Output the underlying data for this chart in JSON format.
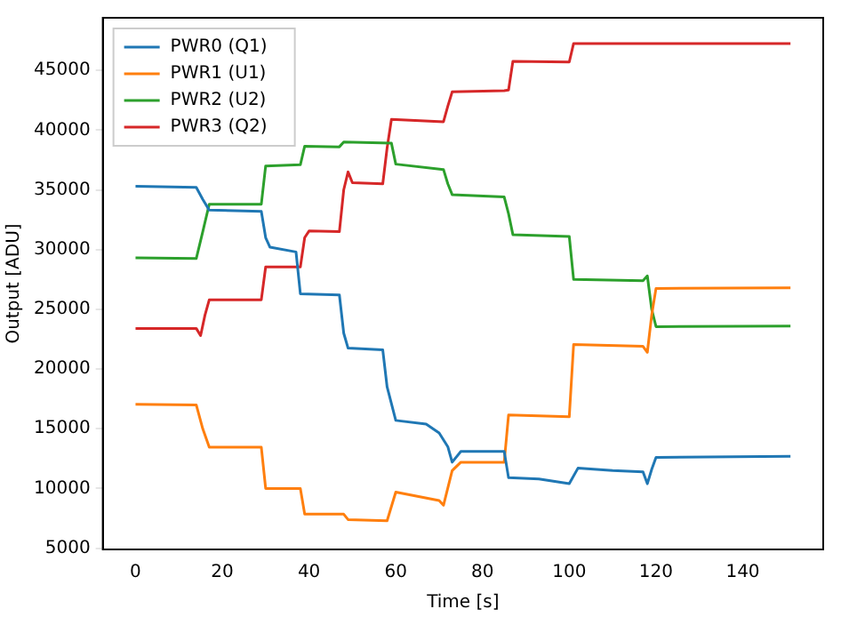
{
  "chart_data": {
    "type": "line",
    "xlabel": "Time [s]",
    "ylabel": "Output [ADU]",
    "legend": "top left",
    "grid": false,
    "marker": "none",
    "line_style": "solid",
    "xlim": [
      -7.55,
      158.55
    ],
    "xticks": [
      0,
      20,
      40,
      60,
      80,
      100,
      120,
      140
    ],
    "ylim": [
      4900,
      49400
    ],
    "yticks": [
      5000,
      10000,
      15000,
      20000,
      25000,
      30000,
      35000,
      40000,
      45000
    ],
    "series": [
      {
        "name": "PWR0 (Q1)",
        "color": "#1f77b4",
        "x": [
          0,
          14,
          15.5,
          17,
          29,
          30,
          31,
          37,
          38,
          47,
          48,
          49,
          57,
          58,
          60,
          67,
          70,
          72,
          73,
          75,
          85,
          86,
          93,
          100,
          102,
          110,
          117,
          118,
          119,
          120,
          151
        ],
        "values": [
          35300,
          35200,
          34200,
          33300,
          33200,
          31000,
          30200,
          29800,
          26300,
          26200,
          23000,
          21750,
          21600,
          18500,
          15700,
          15400,
          14650,
          13500,
          12200,
          13100,
          13100,
          10900,
          10800,
          10400,
          11700,
          11500,
          11400,
          10400,
          11600,
          12600,
          12700
        ]
      },
      {
        "name": "PWR1 (U1)",
        "color": "#ff7f0e",
        "x": [
          0,
          14,
          15.5,
          17,
          29,
          30,
          38,
          39,
          48,
          49,
          58,
          60,
          70,
          71,
          73,
          75,
          85,
          86,
          100,
          101,
          117,
          118,
          119,
          120,
          151
        ],
        "values": [
          17050,
          17000,
          15000,
          13450,
          13450,
          10000,
          10000,
          7850,
          7850,
          7400,
          7300,
          9700,
          9000,
          8600,
          11500,
          12200,
          12200,
          16150,
          16000,
          22050,
          21900,
          21400,
          24500,
          26750,
          26800
        ]
      },
      {
        "name": "PWR2 (U2)",
        "color": "#2ca02c",
        "x": [
          0,
          14,
          15.5,
          17,
          29,
          30,
          38,
          39,
          47,
          48,
          59,
          60,
          71,
          72,
          73,
          85,
          86,
          87,
          100,
          101,
          117,
          118,
          119,
          120,
          151
        ],
        "values": [
          29300,
          29250,
          31500,
          33800,
          33800,
          37000,
          37100,
          38650,
          38600,
          39000,
          38900,
          37150,
          36700,
          35500,
          34600,
          34400,
          33000,
          31250,
          31100,
          27500,
          27400,
          27800,
          25000,
          23550,
          23600
        ]
      },
      {
        "name": "PWR3 (Q2)",
        "color": "#d62728",
        "x": [
          0,
          14,
          15,
          16,
          17,
          29,
          30,
          38,
          39,
          40,
          47,
          48,
          49,
          50,
          57,
          58,
          59,
          71,
          72,
          73,
          85,
          86,
          87,
          100,
          101,
          151
        ],
        "values": [
          23400,
          23400,
          22800,
          24500,
          25800,
          25800,
          28550,
          28550,
          31000,
          31550,
          31500,
          35000,
          36500,
          35600,
          35500,
          38500,
          40900,
          40700,
          42000,
          43200,
          43300,
          43350,
          45750,
          45700,
          47250,
          47250
        ]
      }
    ]
  }
}
